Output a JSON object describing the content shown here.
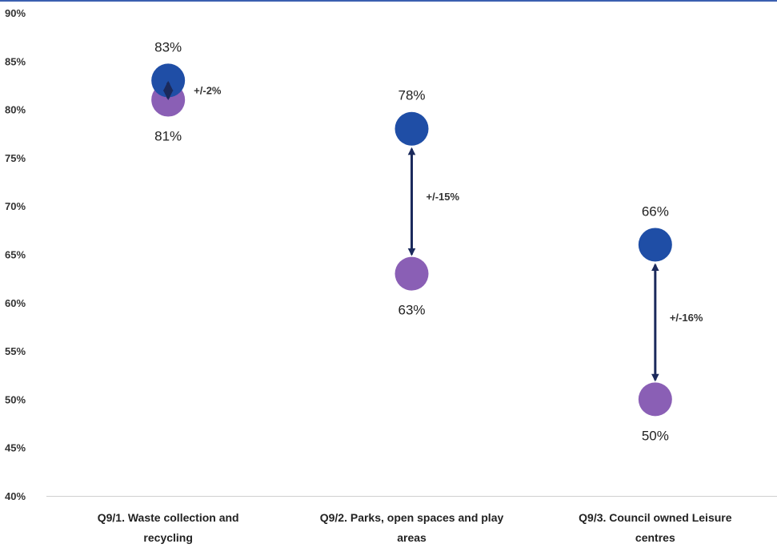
{
  "chart_data": {
    "type": "scatter",
    "title": "",
    "xlabel": "",
    "ylabel": "",
    "ylim": [
      40,
      90
    ],
    "y_ticks": [
      "40%",
      "45%",
      "50%",
      "55%",
      "60%",
      "65%",
      "70%",
      "75%",
      "80%",
      "85%",
      "90%"
    ],
    "grid": false,
    "categories": [
      [
        "Q9/1. Waste collection and",
        "recycling"
      ],
      [
        "Q9/2. Parks, open spaces and play",
        "areas"
      ],
      [
        "Q9/3. Council owned Leisure",
        "centres"
      ]
    ],
    "series": [
      {
        "color": "#1f4ea6",
        "values": [
          83,
          78,
          66
        ],
        "labels": [
          "83%",
          "78%",
          "66%"
        ]
      },
      {
        "color": "#8a5fb5",
        "values": [
          81,
          63,
          50
        ],
        "labels": [
          "81%",
          "63%",
          "50%"
        ]
      }
    ],
    "differences": [
      "+/-2%",
      "+/-15%",
      "+/-16%"
    ],
    "arrow_color": "#1b2a5c"
  }
}
